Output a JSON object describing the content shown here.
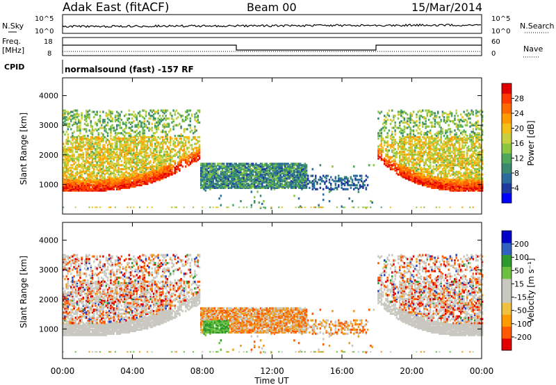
{
  "header": {
    "title": "Adak East (fitACF)",
    "beam": "Beam 00",
    "date": "15/Mar/2014"
  },
  "top_panels": {
    "nsky_label": "N.Sky",
    "nsky_ticks": [
      "10^5",
      "10^0"
    ],
    "nsearch_label": "N.Search",
    "nsearch_ticks": [
      "10^5",
      "10^0"
    ],
    "freq_label": "Freq.",
    "freq_unit": "[MHz]",
    "freq_ticks": [
      "18",
      "8"
    ],
    "nave_label": "Nave",
    "nave_ticks": [
      "60",
      "0"
    ],
    "cpid_label": "CPID",
    "cpid_text": "normalsound (fast) -157 RF"
  },
  "chart_data": [
    {
      "type": "heatmap",
      "panel": "power",
      "xlabel": "",
      "ylabel": "Slant Range [km]",
      "x_ticks": [
        "00:00",
        "04:00",
        "08:00",
        "12:00",
        "16:00",
        "20:00",
        "00:00"
      ],
      "y_ticks": [
        1000,
        2000,
        3000,
        4000
      ],
      "ylim": [
        0,
        4600
      ],
      "xlim_hours": [
        0,
        24
      ],
      "colorbar": {
        "label": "Power [dB]",
        "ticks": [
          "28",
          "24",
          "20",
          "16",
          "12",
          "8",
          "4"
        ],
        "range": [
          0,
          30
        ],
        "colors": [
          "#0000ff",
          "#1f3a9e",
          "#2a6a9c",
          "#3a8a70",
          "#4fa85a",
          "#8cc640",
          "#c8d040",
          "#f2c018",
          "#ff9a00",
          "#ff6a00",
          "#ff3a00",
          "#e00000"
        ]
      },
      "grid": false,
      "description_regions": [
        {
          "hours": [
            0,
            7.7
          ],
          "ranges_km": [
            800,
            3600
          ],
          "note": "strong band near 900-1100 km rising to ~2000 km"
        },
        {
          "hours": [
            8,
            14
          ],
          "ranges_km": [
            900,
            1700
          ],
          "note": "weaker echoes"
        },
        {
          "hours": [
            18,
            24
          ],
          "ranges_km": [
            800,
            3600
          ],
          "note": "strong band returning"
        }
      ]
    },
    {
      "type": "heatmap",
      "panel": "velocity",
      "xlabel": "Time UT",
      "ylabel": "Slant Range [km]",
      "x_ticks": [
        "00:00",
        "04:00",
        "08:00",
        "12:00",
        "16:00",
        "20:00",
        "00:00"
      ],
      "y_ticks": [
        1000,
        2000,
        3000,
        4000
      ],
      "ylim": [
        0,
        4600
      ],
      "xlim_hours": [
        0,
        24
      ],
      "colorbar": {
        "label": "Velocity [m s⁻¹]",
        "ticks": [
          "200",
          "100",
          "50",
          "15",
          "-15",
          "-50",
          "-100",
          "-200"
        ],
        "range": [
          -250,
          250
        ],
        "colors": [
          "#e00000",
          "#ff5a00",
          "#ff9a00",
          "#f0c040",
          "#c8c8c0",
          "#c8c8c0",
          "#6cc040",
          "#2e9a2e",
          "#3060c0",
          "#0000c8"
        ]
      },
      "grid": false
    }
  ]
}
